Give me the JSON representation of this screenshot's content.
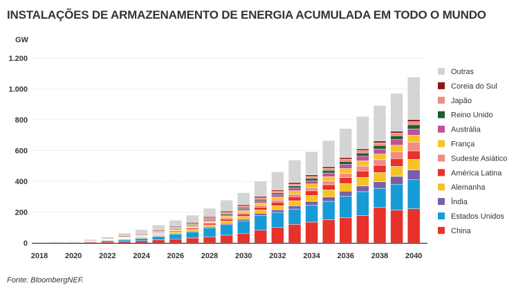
{
  "title": "INSTALAÇÕES DE ARMAZENAMENTO DE ENERGIA ACUMULADA EM TODO O MUNDO",
  "unit": "GW",
  "source": "Fonte: BloombergNEF.",
  "chart_data": {
    "type": "bar",
    "stacked": true,
    "title": "INSTALAÇÕES DE ARMAZENAMENTO DE ENERGIA ACUMULADA EM TODO O MUNDO",
    "ylabel": "GW",
    "xlabel": "",
    "ylim": [
      0,
      1200
    ],
    "yticks": [
      0,
      200,
      400,
      600,
      800,
      1000,
      1200
    ],
    "ytick_labels": [
      "0",
      "200",
      "400",
      "600",
      "800",
      "1.000",
      "1.200"
    ],
    "xtick_labels": [
      "2018",
      "2020",
      "2022",
      "2024",
      "2026",
      "2028",
      "2030",
      "2032",
      "2034",
      "2036",
      "2038",
      "2040"
    ],
    "grid": "horizontal",
    "legend_position": "right",
    "categories": [
      "2018",
      "2019",
      "2020",
      "2021",
      "2022",
      "2023",
      "2024",
      "2025",
      "2026",
      "2027",
      "2028",
      "2029",
      "2030",
      "2031",
      "2032",
      "2033",
      "2034",
      "2035",
      "2036",
      "2037",
      "2038",
      "2039",
      "2040"
    ],
    "series": [
      {
        "name": "China",
        "color": "#e8312a",
        "values": [
          1,
          2,
          3,
          5,
          8,
          11,
          14,
          20,
          26,
          32,
          40,
          50,
          62,
          82,
          100,
          120,
          135,
          150,
          163,
          178,
          230,
          213,
          222
        ]
      },
      {
        "name": "Estados Unidos",
        "color": "#179bd7",
        "values": [
          1,
          1,
          2,
          4,
          7,
          11,
          16,
          22,
          32,
          40,
          58,
          68,
          82,
          96,
          98,
          100,
          110,
          120,
          140,
          155,
          125,
          168,
          188
        ]
      },
      {
        "name": "Índia",
        "color": "#7b5ea8",
        "values": [
          0,
          0,
          0,
          0,
          1,
          1,
          2,
          3,
          4,
          5,
          6,
          8,
          11,
          14,
          17,
          21,
          25,
          29,
          33,
          37,
          42,
          51,
          63
        ]
      },
      {
        "name": "Alemanha",
        "color": "#f6c323",
        "values": [
          0,
          1,
          1,
          2,
          3,
          4,
          6,
          7,
          9,
          11,
          13,
          16,
          18,
          22,
          27,
          33,
          38,
          45,
          50,
          55,
          60,
          65,
          70
        ]
      },
      {
        "name": "América Latina",
        "color": "#e8312a",
        "values": [
          0,
          0,
          0,
          0,
          1,
          2,
          3,
          4,
          6,
          8,
          10,
          13,
          15,
          18,
          22,
          26,
          30,
          34,
          38,
          42,
          47,
          51,
          55
        ]
      },
      {
        "name": "Sudeste Asiático",
        "color": "#f28b82",
        "values": [
          0,
          0,
          0,
          0,
          1,
          1,
          2,
          3,
          4,
          5,
          6,
          8,
          10,
          12,
          14,
          17,
          20,
          24,
          28,
          32,
          36,
          45,
          55
        ]
      },
      {
        "name": "França",
        "color": "#f6c323",
        "values": [
          0,
          0,
          0,
          0,
          1,
          2,
          3,
          4,
          5,
          7,
          9,
          11,
          13,
          16,
          19,
          22,
          25,
          28,
          31,
          34,
          37,
          42,
          47
        ]
      },
      {
        "name": "Austrália",
        "color": "#c3509b",
        "values": [
          0,
          0,
          1,
          1,
          2,
          3,
          4,
          5,
          6,
          7,
          8,
          10,
          12,
          14,
          16,
          18,
          21,
          24,
          27,
          30,
          33,
          36,
          40
        ]
      },
      {
        "name": "Reino Unido",
        "color": "#1f5d32",
        "values": [
          0,
          0,
          0,
          1,
          1,
          2,
          2,
          3,
          4,
          5,
          6,
          7,
          8,
          9,
          11,
          13,
          15,
          17,
          19,
          21,
          23,
          25,
          28
        ]
      },
      {
        "name": "Japão",
        "color": "#f28b82",
        "values": [
          1,
          1,
          1,
          1,
          2,
          2,
          3,
          4,
          5,
          6,
          7,
          8,
          9,
          10,
          11,
          12,
          13,
          14,
          15,
          16,
          17,
          18,
          20
        ]
      },
      {
        "name": "Coreia do Sul",
        "color": "#8b1a10",
        "values": [
          2,
          3,
          3,
          4,
          4,
          5,
          5,
          6,
          6,
          7,
          7,
          8,
          8,
          9,
          9,
          10,
          10,
          10,
          11,
          11,
          12,
          12,
          13
        ]
      },
      {
        "name": "Outras",
        "color": "#d4d4d4",
        "values": [
          1,
          2,
          3,
          6,
          9,
          20,
          27,
          35,
          40,
          47,
          55,
          71,
          78,
          100,
          118,
          146,
          150,
          170,
          188,
          210,
          230,
          245,
          276
        ]
      }
    ]
  }
}
